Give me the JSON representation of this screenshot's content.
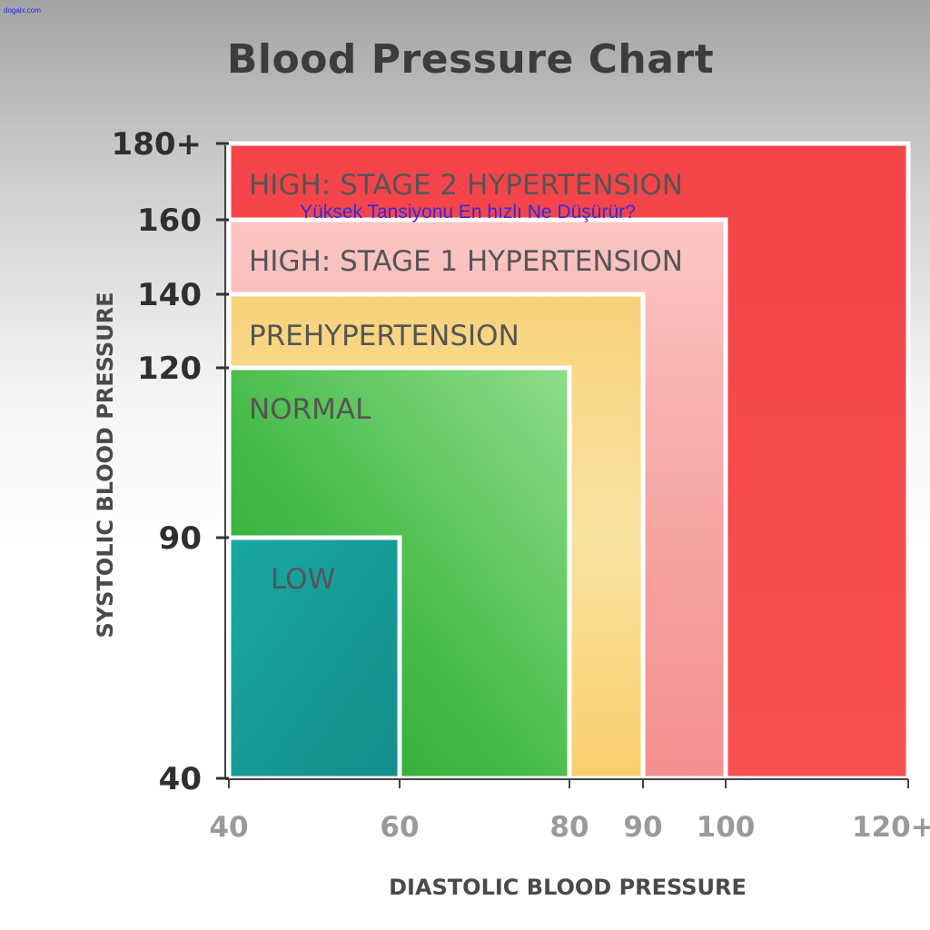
{
  "watermark": "dogalx.com",
  "overlay_caption": "Yüksek Tansiyonu En hızlı Ne Düşürür?",
  "chart_data": {
    "type": "area",
    "title": "Blood Pressure Chart",
    "xlabel": "DIASTOLIC BLOOD PRESSURE",
    "ylabel": "SYSTOLIC BLOOD PRESSURE",
    "x_ticks": [
      {
        "value": 40,
        "label": "40"
      },
      {
        "value": 60,
        "label": "60"
      },
      {
        "value": 80,
        "label": "80"
      },
      {
        "value": 90,
        "label": "90"
      },
      {
        "value": 100,
        "label": "100"
      },
      {
        "value": 120,
        "label": "120+"
      }
    ],
    "y_ticks": [
      {
        "value": 40,
        "label": "40"
      },
      {
        "value": 90,
        "label": "90"
      },
      {
        "value": 120,
        "label": "120"
      },
      {
        "value": 140,
        "label": "140"
      },
      {
        "value": 160,
        "label": "160"
      },
      {
        "value": 180,
        "label": "180+"
      }
    ],
    "zones": [
      {
        "name": "HIGH: STAGE 2 HYPERTENSION",
        "diastolic_max": 120,
        "systolic_max": 180,
        "color": "#f4474b"
      },
      {
        "name": "HIGH: STAGE 1 HYPERTENSION",
        "diastolic_max": 100,
        "systolic_max": 160,
        "color": "#f6a7a6"
      },
      {
        "name": "PREHYPERTENSION",
        "diastolic_max": 90,
        "systolic_max": 140,
        "color": "#f8d77e"
      },
      {
        "name": "NORMAL",
        "diastolic_max": 80,
        "systolic_max": 120,
        "color": "#48be4b"
      },
      {
        "name": "LOW",
        "diastolic_max": 60,
        "systolic_max": 90,
        "color": "#179e99"
      }
    ]
  }
}
